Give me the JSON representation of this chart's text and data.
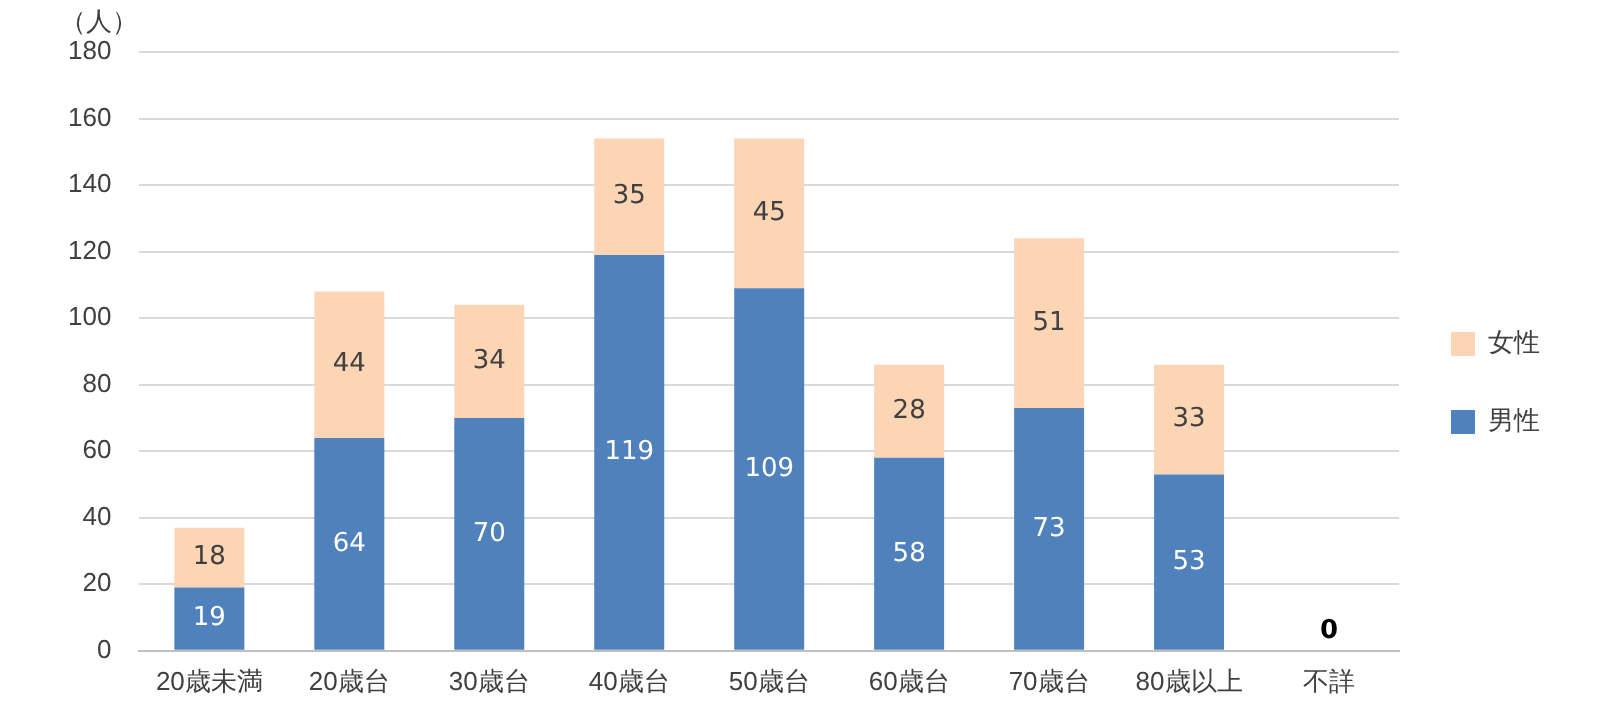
{
  "chart_data": {
    "type": "bar",
    "stacked": true,
    "ylabel": "（人）",
    "categories": [
      "20歳未満",
      "20歳台",
      "30歳台",
      "40歳台",
      "50歳台",
      "60歳台",
      "70歳台",
      "80歳以上",
      "不詳"
    ],
    "series": [
      {
        "name": "男性",
        "color": "#4f81bd",
        "values": [
          19,
          64,
          70,
          119,
          109,
          58,
          73,
          53,
          0
        ],
        "value_labels": [
          "19",
          "64",
          "70",
          "119",
          "109",
          "58",
          "73",
          "53",
          "0"
        ]
      },
      {
        "name": "女性",
        "color": "#fcd5b5",
        "values": [
          18,
          44,
          34,
          35,
          45,
          28,
          51,
          33,
          0
        ],
        "value_labels": [
          "18",
          "44",
          "34",
          "35",
          "45",
          "28",
          "51",
          "33",
          null
        ]
      }
    ],
    "ylim": [
      0,
      180
    ],
    "yticks": [
      0,
      20,
      40,
      60,
      80,
      100,
      120,
      140,
      160,
      180
    ],
    "grid": "y",
    "legend": "right"
  }
}
